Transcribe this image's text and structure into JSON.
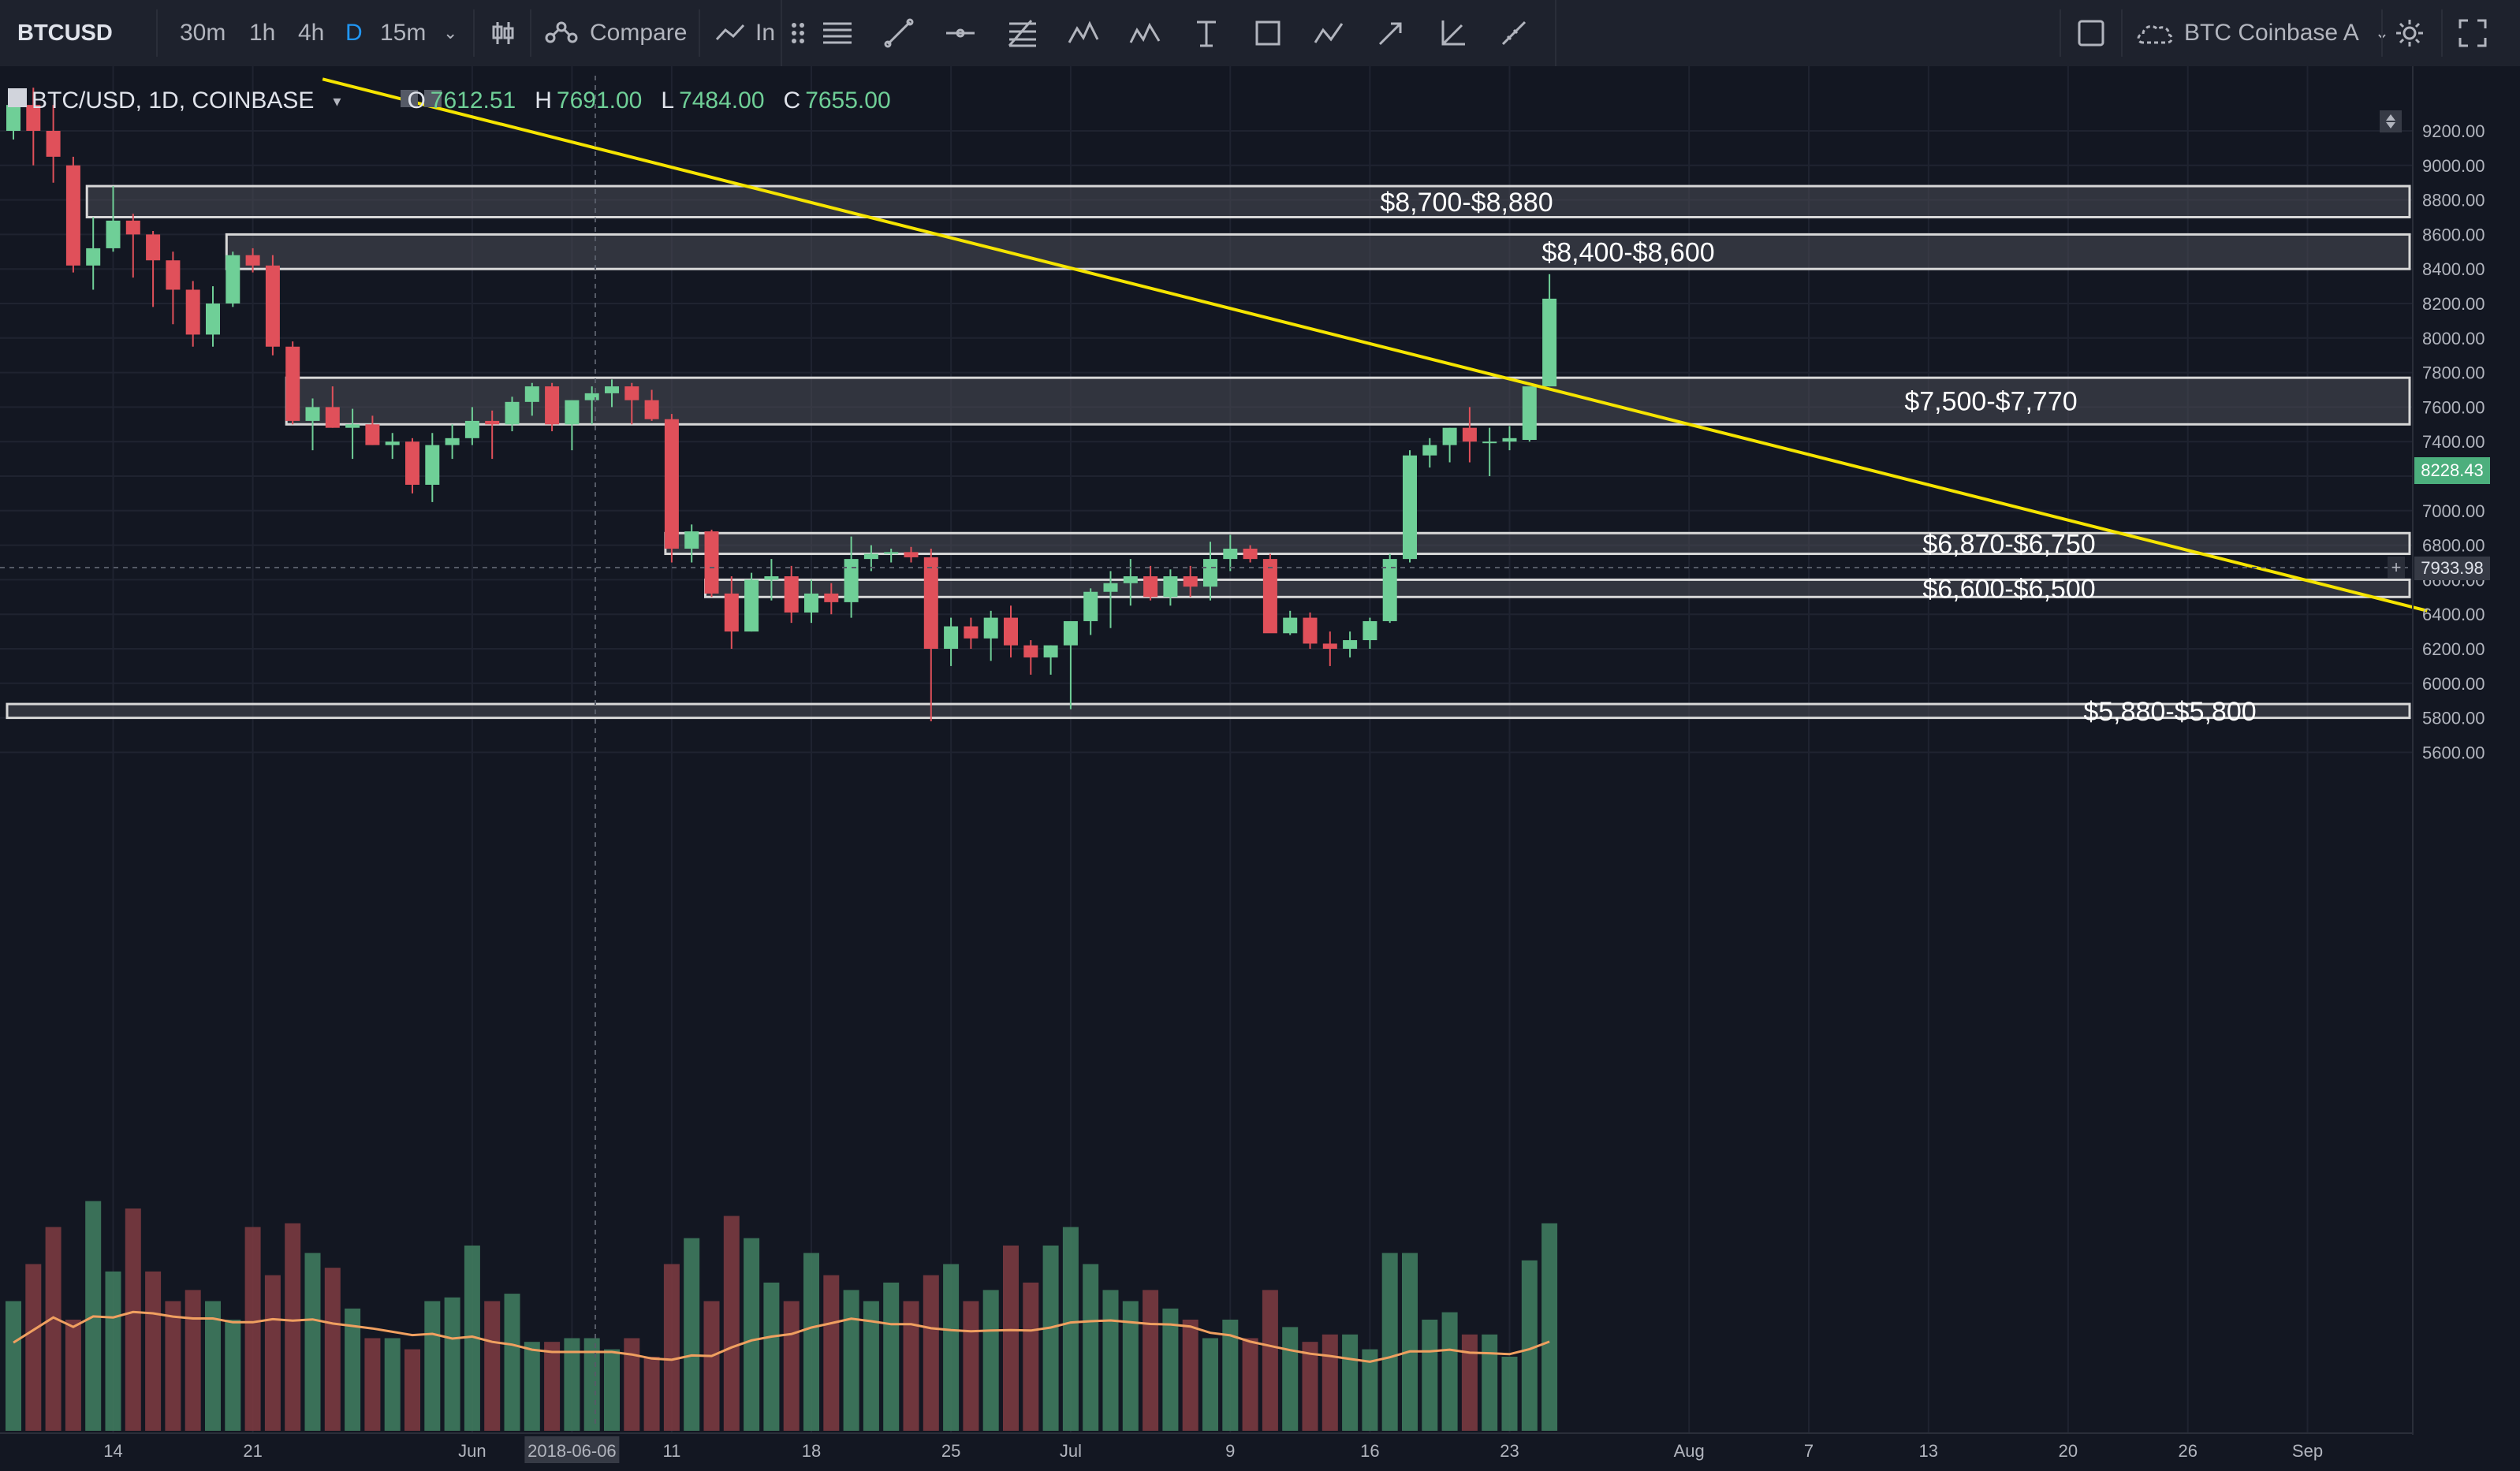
{
  "toolbar": {
    "symbol": "BTCUSD",
    "intervals": [
      "30m",
      "1h",
      "4h",
      "D",
      "15m"
    ],
    "active_interval": "D",
    "compare_label": "Compare",
    "indicators_label": "In",
    "exchange_label": "BTC Coinbase A"
  },
  "legend": {
    "title": "BTC/USD, 1D, COINBASE",
    "open_key": "O",
    "open": "7612.51",
    "high_key": "H",
    "high": "7691.00",
    "low_key": "L",
    "low": "7484.00",
    "close_key": "C",
    "close": "7655.00"
  },
  "colors": {
    "background": "#131722",
    "up": "#6fcf97",
    "down": "#e0505a",
    "trendline": "#f5e400",
    "zone_fill": "#4a4d55",
    "zone_border": "#d8d8d8",
    "ma": "#f0a060"
  },
  "chart_data": {
    "type": "candlestick",
    "title": "BTC/USD, 1D, COINBASE",
    "ylim": [
      5400,
      9400
    ],
    "y_ticks": [
      "5600.00",
      "5800.00",
      "6000.00",
      "6200.00",
      "6400.00",
      "6600.00",
      "6800.00",
      "7000.00",
      "7200.00",
      "7400.00",
      "7600.00",
      "7800.00",
      "8000.00",
      "8200.00",
      "8400.00",
      "8600.00",
      "8800.00",
      "9000.00",
      "9200.00"
    ],
    "x_ticks": [
      {
        "label": "14",
        "day": 5
      },
      {
        "label": "21",
        "day": 12
      },
      {
        "label": "Jun",
        "day": 23
      },
      {
        "label": "2018-06-06",
        "day": 28
      },
      {
        "label": "11",
        "day": 33
      },
      {
        "label": "18",
        "day": 40
      },
      {
        "label": "25",
        "day": 47
      },
      {
        "label": "Jul",
        "day": 53
      },
      {
        "label": "9",
        "day": 61
      },
      {
        "label": "16",
        "day": 68
      },
      {
        "label": "23",
        "day": 75
      },
      {
        "label": "Aug",
        "day": 84
      },
      {
        "label": "7",
        "day": 90
      },
      {
        "label": "13",
        "day": 96
      },
      {
        "label": "20",
        "day": 103
      },
      {
        "label": "26",
        "day": 109
      },
      {
        "label": "Sep",
        "day": 115
      }
    ],
    "ohlc": [
      [
        9200,
        9400,
        9150,
        9350
      ],
      [
        9350,
        9450,
        9000,
        9200
      ],
      [
        9200,
        9350,
        8900,
        9050
      ],
      [
        9000,
        9050,
        8380,
        8420
      ],
      [
        8420,
        8700,
        8280,
        8520
      ],
      [
        8520,
        8880,
        8500,
        8680
      ],
      [
        8680,
        8720,
        8350,
        8600
      ],
      [
        8600,
        8620,
        8180,
        8450
      ],
      [
        8450,
        8500,
        8080,
        8280
      ],
      [
        8280,
        8330,
        7950,
        8020
      ],
      [
        8020,
        8300,
        7950,
        8200
      ],
      [
        8200,
        8500,
        8180,
        8480
      ],
      [
        8480,
        8520,
        8380,
        8420
      ],
      [
        8420,
        8480,
        7900,
        7950
      ],
      [
        7950,
        7980,
        7500,
        7520
      ],
      [
        7520,
        7650,
        7350,
        7600
      ],
      [
        7600,
        7720,
        7480,
        7480
      ],
      [
        7480,
        7590,
        7300,
        7500
      ],
      [
        7500,
        7550,
        7380,
        7380
      ],
      [
        7380,
        7450,
        7300,
        7400
      ],
      [
        7400,
        7420,
        7100,
        7150
      ],
      [
        7150,
        7450,
        7050,
        7380
      ],
      [
        7380,
        7500,
        7300,
        7420
      ],
      [
        7420,
        7600,
        7380,
        7520
      ],
      [
        7520,
        7580,
        7300,
        7500
      ],
      [
        7500,
        7660,
        7460,
        7630
      ],
      [
        7630,
        7740,
        7550,
        7720
      ],
      [
        7720,
        7740,
        7460,
        7500
      ],
      [
        7500,
        7600,
        7350,
        7640
      ],
      [
        7640,
        7720,
        7500,
        7680
      ],
      [
        7680,
        7760,
        7600,
        7720
      ],
      [
        7720,
        7740,
        7500,
        7640
      ],
      [
        7640,
        7700,
        7520,
        7530
      ],
      [
        7530,
        7560,
        6700,
        6780
      ],
      [
        6780,
        6920,
        6700,
        6880
      ],
      [
        6880,
        6890,
        6500,
        6520
      ],
      [
        6520,
        6620,
        6200,
        6300
      ],
      [
        6300,
        6640,
        6300,
        6600
      ],
      [
        6600,
        6720,
        6480,
        6620
      ],
      [
        6620,
        6680,
        6350,
        6410
      ],
      [
        6410,
        6600,
        6350,
        6520
      ],
      [
        6520,
        6580,
        6400,
        6470
      ],
      [
        6470,
        6850,
        6380,
        6720
      ],
      [
        6720,
        6800,
        6650,
        6750
      ],
      [
        6750,
        6780,
        6700,
        6760
      ],
      [
        6760,
        6790,
        6700,
        6730
      ],
      [
        6730,
        6780,
        5780,
        6200
      ],
      [
        6200,
        6380,
        6100,
        6330
      ],
      [
        6330,
        6380,
        6200,
        6260
      ],
      [
        6260,
        6420,
        6130,
        6380
      ],
      [
        6380,
        6450,
        6150,
        6220
      ],
      [
        6220,
        6250,
        6050,
        6150
      ],
      [
        6150,
        6220,
        6050,
        6220
      ],
      [
        6220,
        6320,
        5850,
        6360
      ],
      [
        6360,
        6550,
        6280,
        6530
      ],
      [
        6530,
        6650,
        6320,
        6580
      ],
      [
        6580,
        6720,
        6450,
        6620
      ],
      [
        6620,
        6680,
        6480,
        6500
      ],
      [
        6500,
        6660,
        6450,
        6620
      ],
      [
        6620,
        6680,
        6500,
        6560
      ],
      [
        6560,
        6820,
        6480,
        6720
      ],
      [
        6720,
        6860,
        6650,
        6780
      ],
      [
        6780,
        6800,
        6700,
        6720
      ],
      [
        6720,
        6750,
        6300,
        6290
      ],
      [
        6290,
        6420,
        6280,
        6380
      ],
      [
        6380,
        6410,
        6200,
        6230
      ],
      [
        6230,
        6300,
        6100,
        6200
      ],
      [
        6200,
        6300,
        6150,
        6250
      ],
      [
        6250,
        6380,
        6200,
        6360
      ],
      [
        6360,
        6750,
        6350,
        6720
      ],
      [
        6720,
        7350,
        6700,
        7320
      ],
      [
        7320,
        7420,
        7250,
        7380
      ],
      [
        7380,
        7480,
        7280,
        7480
      ],
      [
        7480,
        7600,
        7280,
        7400
      ],
      [
        7400,
        7480,
        7200,
        7400
      ],
      [
        7400,
        7490,
        7350,
        7420
      ],
      [
        7410,
        7700,
        7400,
        7720
      ],
      [
        7720,
        8370,
        7720,
        8228
      ]
    ],
    "volume_ma": "orange moving average of volume",
    "last_price": "8228.43",
    "crosshair_price": "7933.98",
    "trendline": [
      {
        "day": 15.5,
        "price": 9500
      },
      {
        "day": 121,
        "price": 6420
      }
    ],
    "zones": [
      {
        "label": "$8,700-$8,880",
        "low": 8700,
        "high": 8880,
        "start_day": 4
      },
      {
        "label": "$8,400-$8,600",
        "low": 8400,
        "high": 8600,
        "start_day": 11
      },
      {
        "label": "$7,500-$7,770",
        "low": 7500,
        "high": 7770,
        "start_day": 14
      },
      {
        "label": "$6,870-$6,750",
        "low": 6750,
        "high": 6870,
        "start_day": 33
      },
      {
        "label": "$6,600-$6,500",
        "low": 6500,
        "high": 6600,
        "start_day": 35
      },
      {
        "label": "$5,880-$5,800",
        "low": 5800,
        "high": 5880,
        "start_day": 0
      }
    ],
    "volume": [
      0.35,
      0.45,
      0.55,
      0.3,
      0.62,
      0.43,
      0.6,
      0.43,
      0.35,
      0.38,
      0.35,
      0.3,
      0.55,
      0.42,
      0.56,
      0.48,
      0.44,
      0.33,
      0.25,
      0.25,
      0.22,
      0.35,
      0.36,
      0.5,
      0.35,
      0.37,
      0.24,
      0.24,
      0.25,
      0.25,
      0.22,
      0.25,
      0.2,
      0.45,
      0.52,
      0.35,
      0.58,
      0.52,
      0.4,
      0.35,
      0.48,
      0.42,
      0.38,
      0.35,
      0.4,
      0.35,
      0.42,
      0.45,
      0.35,
      0.38,
      0.5,
      0.4,
      0.5,
      0.55,
      0.45,
      0.38,
      0.35,
      0.38,
      0.33,
      0.3,
      0.25,
      0.3,
      0.25,
      0.38,
      0.28,
      0.24,
      0.26,
      0.26,
      0.22,
      0.48,
      0.48,
      0.3,
      0.32,
      0.26,
      0.26,
      0.2,
      0.46,
      0.56
    ]
  }
}
